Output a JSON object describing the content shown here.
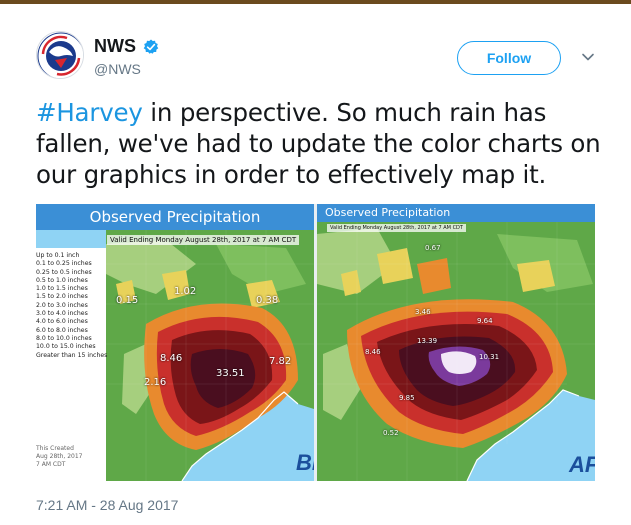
{
  "author": {
    "name": "NWS",
    "handle": "@NWS",
    "avatar_icon": "nws-logo-icon",
    "verified_icon": "verified-badge-icon",
    "avatar_arc_text": "NATIONAL WEATHER SERVICE"
  },
  "actions": {
    "follow_label": "Follow",
    "menu_icon": "chevron-down-icon"
  },
  "tweet": {
    "hashtag": "#Harvey",
    "text": " in perspective.  So much rain has fallen, we've had to update the color charts on our graphics in order to effectively map it."
  },
  "media": {
    "left_map": {
      "title": "Observed Precipitation",
      "valid": "Valid Ending Monday August 28th, 2017 at 7 AM CDT",
      "legend": [
        "Up to 0.1 inch",
        "0.1 to 0.25 inches",
        "0.25 to 0.5 inches",
        "0.5 to 1.0 inches",
        "1.0 to 1.5 inches",
        "1.5 to 2.0 inches",
        "2.0 to 3.0 inches",
        "3.0 to 4.0 inches",
        "4.0 to 6.0 inches",
        "6.0 to 8.0 inches",
        "8.0 to 10.0 inches",
        "10.0 to 15.0 inches",
        "Greater than 15 inches"
      ],
      "footer": [
        "This Created",
        "Aug 28th, 2017",
        "7 AM CDT"
      ],
      "labels": [
        "0.15",
        "1.02",
        "0.38",
        "8.46",
        "33.51",
        "7.82",
        "2.16"
      ],
      "brand": "BE"
    },
    "right_map": {
      "title": "Observed Precipitation",
      "valid": "Valid Ending Monday August 28th, 2017 at 7 AM CDT",
      "labels": [
        "0.67",
        "3.46",
        "9.64",
        "13.39",
        "10.31",
        "9.85",
        "8.46",
        "0.52"
      ],
      "brand": "AF"
    },
    "colors": {
      "water": "#8fd3f4",
      "land_green": "#5fa848",
      "land_light": "#a6cf7e",
      "yellow": "#e8d25a",
      "orange": "#e88a2e",
      "red": "#c9302c",
      "dark_red": "#7a1518",
      "maroon": "#4a0e1f",
      "purple": "#7b3a9c",
      "white_core": "#f2e9f7"
    }
  },
  "timestamp": "7:21 AM - 28 Aug 2017"
}
